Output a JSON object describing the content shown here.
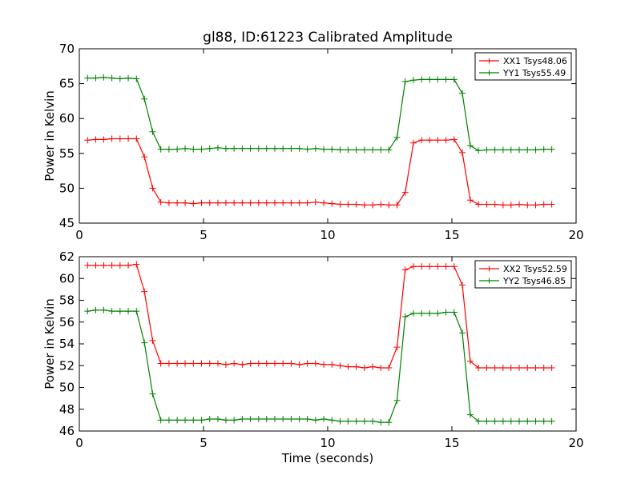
{
  "chart_data": [
    {
      "type": "line",
      "title": "gl88, ID:61223 Calibrated Amplitude",
      "xlabel": "",
      "ylabel": "Power in Kelvin",
      "xlim": [
        0,
        20
      ],
      "ylim": [
        45,
        70
      ],
      "xticks": [
        "0",
        "5",
        "10",
        "15",
        "20"
      ],
      "yticks": [
        "45",
        "50",
        "55",
        "60",
        "65",
        "70"
      ],
      "legend_position": "top-right",
      "x": [
        0.33,
        0.66,
        0.98,
        1.31,
        1.64,
        1.97,
        2.3,
        2.62,
        2.95,
        3.28,
        3.61,
        3.94,
        4.26,
        4.59,
        4.92,
        5.25,
        5.58,
        5.9,
        6.23,
        6.56,
        6.89,
        7.22,
        7.54,
        7.87,
        8.2,
        8.53,
        8.86,
        9.18,
        9.51,
        9.84,
        10.17,
        10.5,
        10.82,
        11.15,
        11.48,
        11.81,
        12.14,
        12.46,
        12.79,
        13.12,
        13.45,
        13.78,
        14.1,
        14.43,
        14.76,
        15.09,
        15.42,
        15.74,
        16.07,
        16.4,
        16.73,
        17.06,
        17.38,
        17.71,
        18.04,
        18.37,
        18.7,
        19.02
      ],
      "series": [
        {
          "name": "XX1 Tsys48.06",
          "color": "#ff0000",
          "values": [
            56.9,
            57.0,
            57.0,
            57.1,
            57.1,
            57.1,
            57.1,
            54.5,
            50.0,
            48.0,
            47.9,
            47.9,
            47.9,
            47.8,
            47.9,
            47.9,
            47.9,
            47.9,
            47.9,
            47.9,
            47.9,
            47.9,
            47.9,
            47.9,
            47.9,
            47.9,
            47.9,
            47.9,
            48.0,
            47.9,
            47.8,
            47.7,
            47.7,
            47.7,
            47.6,
            47.6,
            47.7,
            47.6,
            47.6,
            49.4,
            56.5,
            56.9,
            56.9,
            56.9,
            56.9,
            57.0,
            55.1,
            48.3,
            47.7,
            47.7,
            47.7,
            47.6,
            47.6,
            47.7,
            47.6,
            47.6,
            47.7,
            47.7
          ]
        },
        {
          "name": "YY1 Tsys55.49",
          "color": "#008000",
          "values": [
            65.8,
            65.8,
            65.9,
            65.8,
            65.7,
            65.8,
            65.7,
            62.8,
            58.1,
            55.6,
            55.6,
            55.6,
            55.7,
            55.6,
            55.6,
            55.7,
            55.8,
            55.7,
            55.7,
            55.7,
            55.7,
            55.7,
            55.7,
            55.7,
            55.7,
            55.7,
            55.7,
            55.6,
            55.7,
            55.6,
            55.6,
            55.5,
            55.5,
            55.5,
            55.5,
            55.5,
            55.5,
            55.5,
            57.3,
            65.3,
            65.5,
            65.6,
            65.6,
            65.6,
            65.6,
            65.6,
            63.6,
            56.1,
            55.4,
            55.5,
            55.5,
            55.5,
            55.5,
            55.5,
            55.5,
            55.5,
            55.6,
            55.6
          ]
        }
      ]
    },
    {
      "type": "line",
      "title": "",
      "xlabel": "Time (seconds)",
      "ylabel": "Power in Kelvin",
      "xlim": [
        0,
        20
      ],
      "ylim": [
        46,
        62
      ],
      "xticks": [
        "0",
        "5",
        "10",
        "15",
        "20"
      ],
      "yticks": [
        "46",
        "48",
        "50",
        "52",
        "54",
        "56",
        "58",
        "60",
        "62"
      ],
      "legend_position": "top-right",
      "x": [
        0.33,
        0.66,
        0.98,
        1.31,
        1.64,
        1.97,
        2.3,
        2.62,
        2.95,
        3.28,
        3.61,
        3.94,
        4.26,
        4.59,
        4.92,
        5.25,
        5.58,
        5.9,
        6.23,
        6.56,
        6.89,
        7.22,
        7.54,
        7.87,
        8.2,
        8.53,
        8.86,
        9.18,
        9.51,
        9.84,
        10.17,
        10.5,
        10.82,
        11.15,
        11.48,
        11.81,
        12.14,
        12.46,
        12.79,
        13.12,
        13.45,
        13.78,
        14.1,
        14.43,
        14.76,
        15.09,
        15.42,
        15.74,
        16.07,
        16.4,
        16.73,
        17.06,
        17.38,
        17.71,
        18.04,
        18.37,
        18.7,
        19.02
      ],
      "series": [
        {
          "name": "XX2 Tsys52.59",
          "color": "#ff0000",
          "values": [
            61.2,
            61.2,
            61.2,
            61.2,
            61.2,
            61.2,
            61.3,
            58.8,
            54.3,
            52.2,
            52.2,
            52.2,
            52.2,
            52.2,
            52.2,
            52.2,
            52.2,
            52.1,
            52.2,
            52.1,
            52.2,
            52.2,
            52.2,
            52.2,
            52.2,
            52.2,
            52.1,
            52.2,
            52.2,
            52.1,
            52.1,
            52.0,
            51.9,
            51.9,
            51.8,
            51.9,
            51.8,
            51.8,
            53.7,
            60.8,
            61.1,
            61.1,
            61.1,
            61.1,
            61.1,
            61.1,
            59.4,
            52.4,
            51.8,
            51.8,
            51.8,
            51.8,
            51.8,
            51.8,
            51.8,
            51.8,
            51.8,
            51.8
          ]
        },
        {
          "name": "YY2 Tsys46.85",
          "color": "#008000",
          "values": [
            57.0,
            57.1,
            57.1,
            57.0,
            57.0,
            57.0,
            57.0,
            54.1,
            49.4,
            47.0,
            47.0,
            47.0,
            47.0,
            47.0,
            47.0,
            47.1,
            47.1,
            47.0,
            47.0,
            47.1,
            47.1,
            47.1,
            47.1,
            47.1,
            47.1,
            47.1,
            47.1,
            47.1,
            47.0,
            47.1,
            47.0,
            46.9,
            46.9,
            46.9,
            46.9,
            46.9,
            46.8,
            46.8,
            48.8,
            56.5,
            56.8,
            56.8,
            56.8,
            56.8,
            56.9,
            56.9,
            55.0,
            47.5,
            46.9,
            46.9,
            46.9,
            46.9,
            46.9,
            46.9,
            46.9,
            46.9,
            46.9,
            46.9
          ]
        }
      ]
    }
  ]
}
